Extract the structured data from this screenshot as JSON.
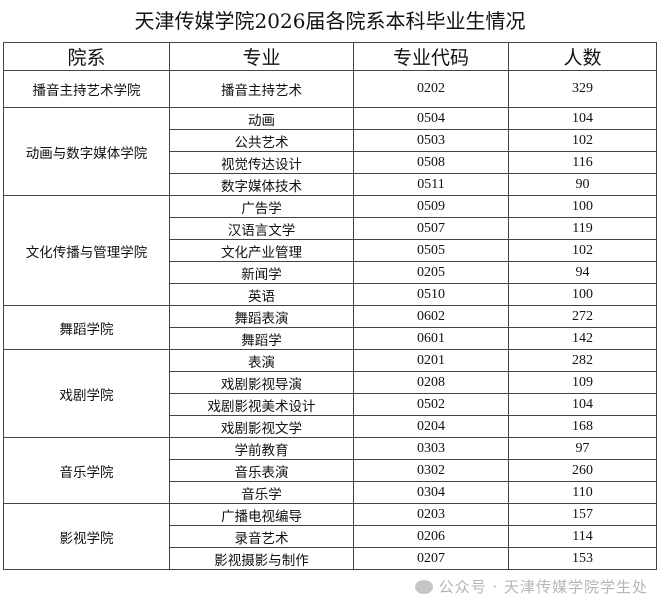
{
  "title": "天津传媒学院2026届各院系本科毕业生情况",
  "headers": [
    "院系",
    "专业",
    "专业代码",
    "人数"
  ],
  "colleges": [
    {
      "name": "播音主持艺术学院",
      "majors": [
        {
          "name": "播音主持艺术",
          "code": "0202",
          "count": "329"
        }
      ]
    },
    {
      "name": "动画与数字媒体学院",
      "majors": [
        {
          "name": "动画",
          "code": "0504",
          "count": "104"
        },
        {
          "name": "公共艺术",
          "code": "0503",
          "count": "102"
        },
        {
          "name": "视觉传达设计",
          "code": "0508",
          "count": "116"
        },
        {
          "name": "数字媒体技术",
          "code": "0511",
          "count": "90"
        }
      ]
    },
    {
      "name": "文化传播与管理学院",
      "majors": [
        {
          "name": "广告学",
          "code": "0509",
          "count": "100"
        },
        {
          "name": "汉语言文学",
          "code": "0507",
          "count": "119"
        },
        {
          "name": "文化产业管理",
          "code": "0505",
          "count": "102"
        },
        {
          "name": "新闻学",
          "code": "0205",
          "count": "94"
        },
        {
          "name": "英语",
          "code": "0510",
          "count": "100"
        }
      ]
    },
    {
      "name": "舞蹈学院",
      "majors": [
        {
          "name": "舞蹈表演",
          "code": "0602",
          "count": "272"
        },
        {
          "name": "舞蹈学",
          "code": "0601",
          "count": "142"
        }
      ]
    },
    {
      "name": "戏剧学院",
      "majors": [
        {
          "name": "表演",
          "code": "0201",
          "count": "282"
        },
        {
          "name": "戏剧影视导演",
          "code": "0208",
          "count": "109"
        },
        {
          "name": "戏剧影视美术设计",
          "code": "0502",
          "count": "104"
        },
        {
          "name": "戏剧影视文学",
          "code": "0204",
          "count": "168"
        }
      ]
    },
    {
      "name": "音乐学院",
      "majors": [
        {
          "name": "学前教育",
          "code": "0303",
          "count": "97"
        },
        {
          "name": "音乐表演",
          "code": "0302",
          "count": "260"
        },
        {
          "name": "音乐学",
          "code": "0304",
          "count": "110"
        }
      ]
    },
    {
      "name": "影视学院",
      "majors": [
        {
          "name": "广播电视编导",
          "code": "0203",
          "count": "157"
        },
        {
          "name": "录音艺术",
          "code": "0206",
          "count": "114"
        },
        {
          "name": "影视摄影与制作",
          "code": "0207",
          "count": "153"
        }
      ]
    }
  ],
  "watermark": "公众号 · 天津传媒学院学生处"
}
